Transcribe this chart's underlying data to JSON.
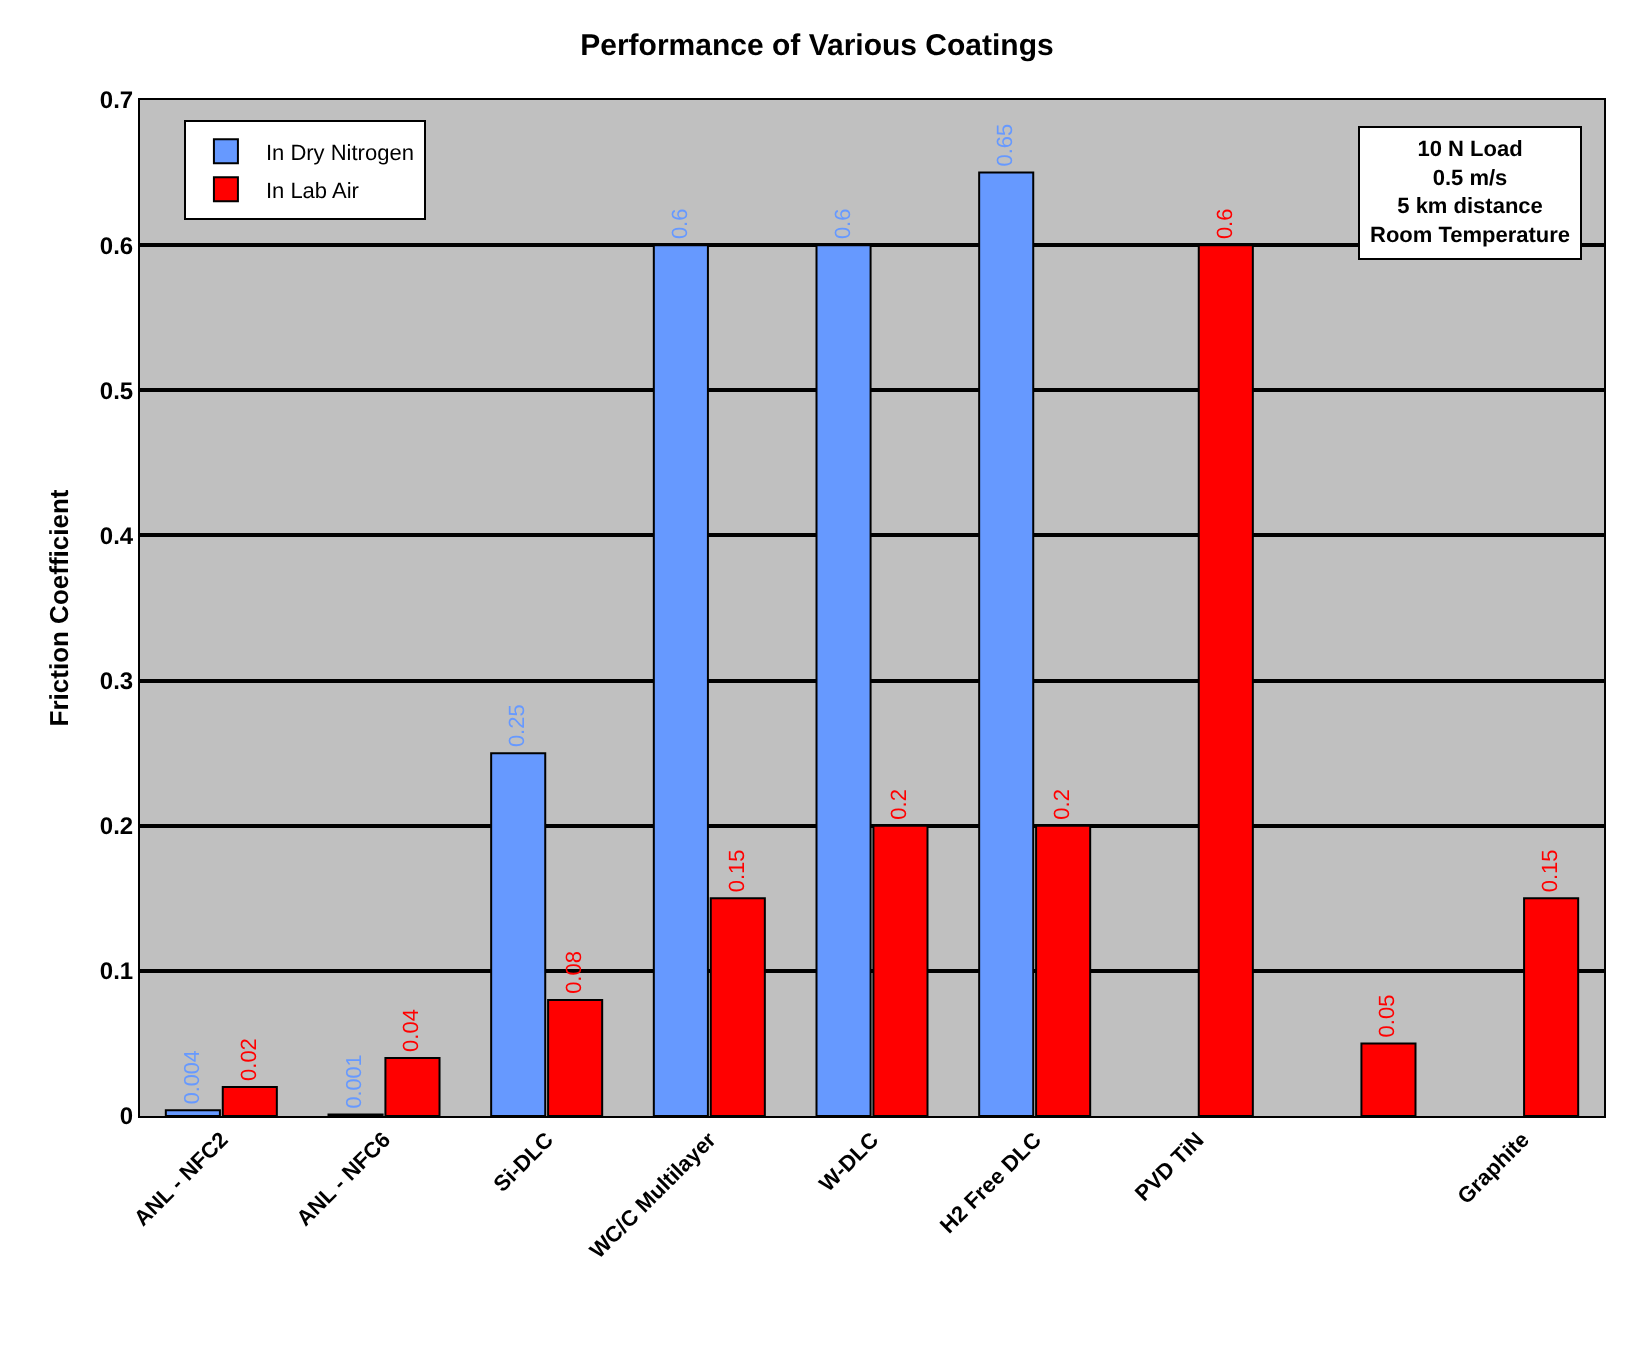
{
  "chart_data": {
    "type": "bar",
    "title": "Performance of Various Coatings",
    "ylabel": "Friction Coefficient",
    "categories": [
      "ANL - NFC2",
      "ANL - NFC6",
      "Si-DLC",
      "WC/C Multilayer",
      "W-DLC",
      "H2 Free DLC",
      "PVD TiN",
      null,
      "Graphite"
    ],
    "series": [
      {
        "name": "In Dry Nitrogen",
        "color": "#6699ff",
        "values": [
          0.004,
          0.001,
          0.25,
          0.6,
          0.6,
          0.65,
          null,
          null,
          null
        ]
      },
      {
        "name": "In Lab Air",
        "color": "#ff0000",
        "values": [
          0.02,
          0.04,
          0.08,
          0.15,
          0.2,
          0.2,
          0.6,
          0.05,
          0.15
        ]
      }
    ],
    "ylim": [
      0,
      0.7
    ],
    "yticks": [
      {
        "value": 0,
        "label": "0"
      },
      0.1,
      0.2,
      0.3,
      0.4,
      0.5,
      0.6,
      0.7
    ],
    "grid": "y",
    "legend": "top left",
    "data_labels": true,
    "annotations": [
      "10 N Load\n0.5 m/s\n5 km distance\nRoom Temperature"
    ]
  }
}
